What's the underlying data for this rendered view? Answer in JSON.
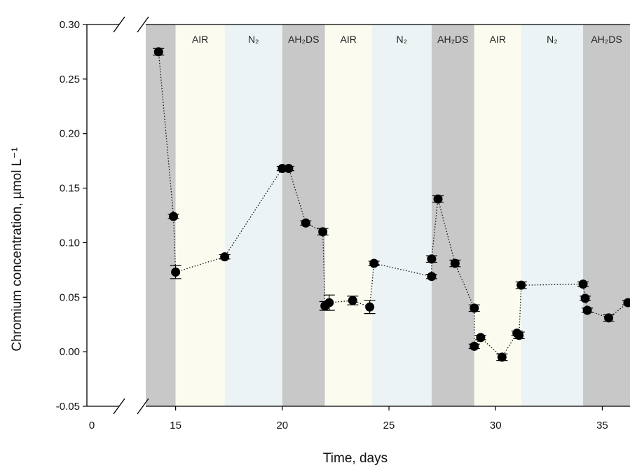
{
  "chart_data": {
    "type": "scatter",
    "title": "",
    "xlabel": "Time, days",
    "ylabel": "Chromium concentration, µmol L⁻¹",
    "ylim": [
      -0.05,
      0.3
    ],
    "xlim": [
      13.6,
      36.3
    ],
    "x_break": true,
    "x_ticks": [
      {
        "value": 0,
        "label": "0",
        "pre_break": true
      },
      {
        "value": 15,
        "label": "15"
      },
      {
        "value": 20,
        "label": "20"
      },
      {
        "value": 25,
        "label": "25"
      },
      {
        "value": 30,
        "label": "30"
      },
      {
        "value": 35,
        "label": "35"
      }
    ],
    "y_ticks": [
      "-0.05",
      "0.00",
      "0.05",
      "0.10",
      "0.15",
      "0.20",
      "0.25",
      "0.30"
    ],
    "bands": [
      {
        "start": 13.6,
        "end": 15.0,
        "label": "",
        "color": "#c8c8c8"
      },
      {
        "start": 15.0,
        "end": 17.3,
        "label": "AIR",
        "color": "#fbfbef"
      },
      {
        "start": 17.3,
        "end": 20.0,
        "label": "N₂",
        "color": "#ecf3f5"
      },
      {
        "start": 20.0,
        "end": 22.0,
        "label": "AH₂DS",
        "color": "#c8c8c8"
      },
      {
        "start": 22.0,
        "end": 24.2,
        "label": "AIR",
        "color": "#fbfbef"
      },
      {
        "start": 24.2,
        "end": 27.0,
        "label": "N₂",
        "color": "#ecf3f5"
      },
      {
        "start": 27.0,
        "end": 29.0,
        "label": "AH₂DS",
        "color": "#c8c8c8"
      },
      {
        "start": 29.0,
        "end": 31.2,
        "label": "AIR",
        "color": "#fbfbef"
      },
      {
        "start": 31.2,
        "end": 34.1,
        "label": "N₂",
        "color": "#ecf3f5"
      },
      {
        "start": 34.1,
        "end": 36.3,
        "label": "AH₂DS",
        "color": "#c8c8c8"
      }
    ],
    "series": [
      {
        "points": [
          {
            "x": 14.2,
            "y": 0.275,
            "err": 0.003
          },
          {
            "x": 14.9,
            "y": 0.124,
            "err": 0.002
          },
          {
            "x": 15.0,
            "y": 0.073,
            "err": 0.006
          },
          {
            "x": 17.3,
            "y": 0.087,
            "err": 0.002
          },
          {
            "x": 20.0,
            "y": 0.168,
            "err": 0.002
          },
          {
            "x": 20.3,
            "y": 0.168,
            "err": 0.002
          },
          {
            "x": 21.1,
            "y": 0.118,
            "err": 0.002
          },
          {
            "x": 21.9,
            "y": 0.11,
            "err": 0.003
          },
          {
            "x": 22.0,
            "y": 0.042,
            "err": 0.004
          },
          {
            "x": 22.2,
            "y": 0.045,
            "err": 0.007
          },
          {
            "x": 23.3,
            "y": 0.047,
            "err": 0.004
          },
          {
            "x": 24.1,
            "y": 0.041,
            "err": 0.006
          },
          {
            "x": 24.3,
            "y": 0.081,
            "err": 0.002
          },
          {
            "x": 27.0,
            "y": 0.069,
            "err": 0.002
          },
          {
            "x": 27.0,
            "y": 0.085,
            "err": 0.003
          },
          {
            "x": 27.3,
            "y": 0.14,
            "err": 0.003
          },
          {
            "x": 28.1,
            "y": 0.081,
            "err": 0.003
          },
          {
            "x": 29.0,
            "y": 0.04,
            "err": 0.003
          },
          {
            "x": 29.0,
            "y": 0.005,
            "err": 0.002
          },
          {
            "x": 29.3,
            "y": 0.013,
            "err": 0.002
          },
          {
            "x": 30.3,
            "y": -0.005,
            "err": 0.003
          },
          {
            "x": 31.0,
            "y": 0.017,
            "err": 0.002
          },
          {
            "x": 31.1,
            "y": 0.015,
            "err": 0.003
          },
          {
            "x": 31.2,
            "y": 0.061,
            "err": 0.003
          },
          {
            "x": 34.1,
            "y": 0.062,
            "err": 0.002
          },
          {
            "x": 34.2,
            "y": 0.049,
            "err": 0.002
          },
          {
            "x": 34.3,
            "y": 0.038,
            "err": 0.002
          },
          {
            "x": 35.3,
            "y": 0.031,
            "err": 0.003
          },
          {
            "x": 36.2,
            "y": 0.045,
            "err": 0.002
          }
        ]
      }
    ],
    "grid": false,
    "legend": "none"
  }
}
